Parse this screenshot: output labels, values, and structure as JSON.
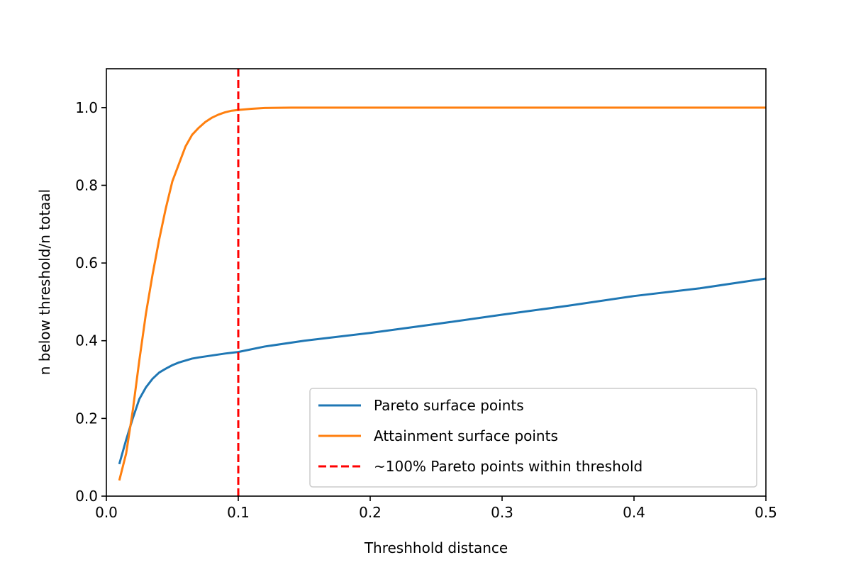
{
  "chart_data": {
    "type": "line",
    "title": "",
    "xlabel": "Threshhold distance",
    "ylabel": "n below threshold/n totaal",
    "xlim": [
      0.0,
      0.5
    ],
    "ylim": [
      0.0,
      1.1
    ],
    "xticks": [
      0.0,
      0.1,
      0.2,
      0.3,
      0.4,
      0.5
    ],
    "xtick_labels": [
      "0.0",
      "0.1",
      "0.2",
      "0.3",
      "0.4",
      "0.5"
    ],
    "yticks": [
      0.0,
      0.2,
      0.4,
      0.6,
      0.8,
      1.0
    ],
    "ytick_labels": [
      "0.0",
      "0.2",
      "0.4",
      "0.6",
      "0.8",
      "1.0"
    ],
    "grid": false,
    "legend_position": "lower-right",
    "series": [
      {
        "name": "Pareto surface points",
        "color": "#1f77b4",
        "style": "solid",
        "x": [
          0.01,
          0.015,
          0.02,
          0.025,
          0.03,
          0.035,
          0.04,
          0.045,
          0.05,
          0.055,
          0.06,
          0.065,
          0.07,
          0.08,
          0.09,
          0.1,
          0.12,
          0.15,
          0.2,
          0.25,
          0.3,
          0.35,
          0.4,
          0.45,
          0.5
        ],
        "y": [
          0.085,
          0.145,
          0.2,
          0.25,
          0.28,
          0.302,
          0.318,
          0.328,
          0.337,
          0.344,
          0.349,
          0.354,
          0.357,
          0.362,
          0.367,
          0.371,
          0.385,
          0.4,
          0.42,
          0.443,
          0.467,
          0.49,
          0.515,
          0.535,
          0.56
        ]
      },
      {
        "name": "Attainment surface points",
        "color": "#ff7f0e",
        "style": "solid",
        "x": [
          0.01,
          0.015,
          0.02,
          0.025,
          0.03,
          0.035,
          0.04,
          0.045,
          0.05,
          0.055,
          0.06,
          0.065,
          0.07,
          0.075,
          0.08,
          0.085,
          0.09,
          0.095,
          0.1,
          0.11,
          0.12,
          0.14,
          0.2,
          0.3,
          0.4,
          0.5
        ],
        "y": [
          0.043,
          0.11,
          0.22,
          0.35,
          0.47,
          0.57,
          0.66,
          0.74,
          0.81,
          0.855,
          0.9,
          0.93,
          0.948,
          0.963,
          0.974,
          0.982,
          0.988,
          0.992,
          0.994,
          0.997,
          0.999,
          1.0,
          1.0,
          1.0,
          1.0,
          1.0
        ]
      }
    ],
    "vlines": [
      {
        "name": "~100% Pareto points within threshold",
        "x": 0.1,
        "color": "#ff0000",
        "style": "dashed"
      }
    ]
  }
}
